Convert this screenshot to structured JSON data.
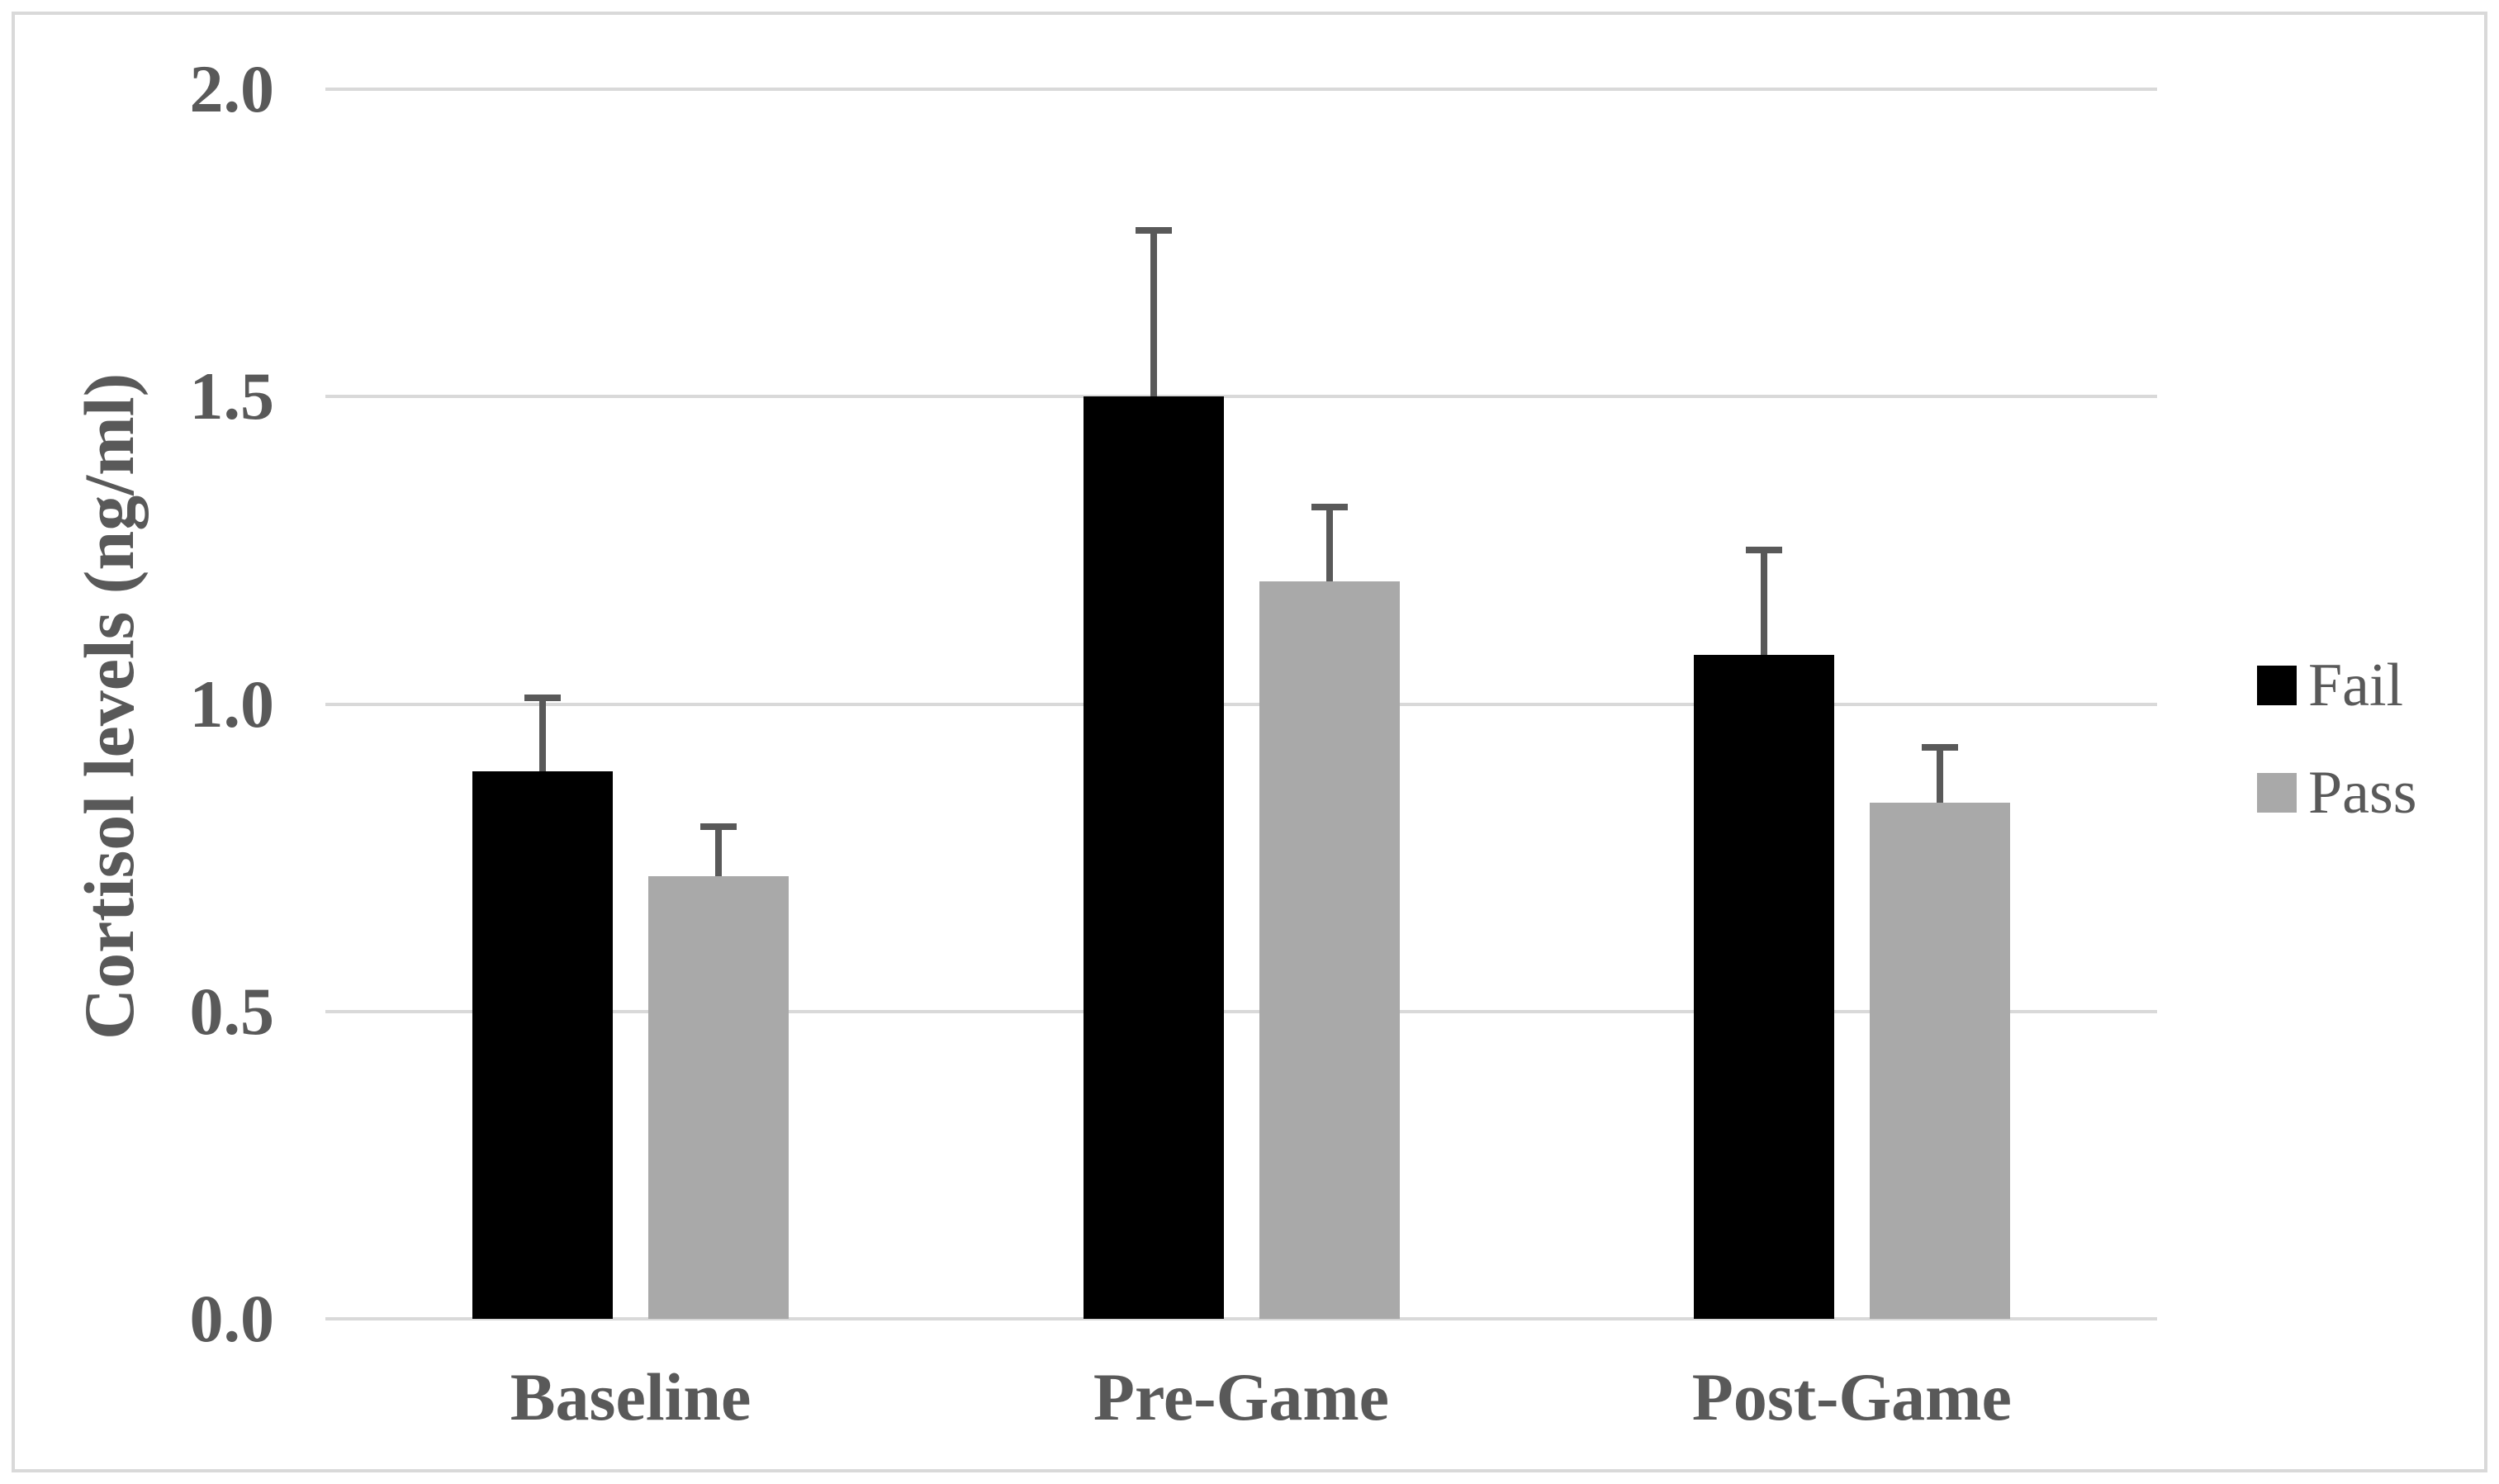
{
  "figure": {
    "background": "#ffffff",
    "border_color": "#d9d9d9"
  },
  "chart_data": {
    "type": "bar",
    "title": "",
    "xlabel": "",
    "ylabel": "Cortisol levels (ng/ml)",
    "categories": [
      "Baseline",
      "Pre-Game",
      "Post-Game"
    ],
    "series": [
      {
        "name": "Fail",
        "color": "#000000",
        "values": [
          0.89,
          1.5,
          1.08
        ],
        "errors_plus": [
          0.12,
          0.27,
          0.17
        ]
      },
      {
        "name": "Pass",
        "color": "#a9a9a9",
        "values": [
          0.72,
          1.2,
          0.84
        ],
        "errors_plus": [
          0.08,
          0.12,
          0.09
        ]
      }
    ],
    "ylim": [
      0,
      2.0
    ],
    "yticks": [
      "0.0",
      "0.5",
      "1.0",
      "1.5",
      "2.0"
    ],
    "grid": true,
    "legend_position": "right",
    "error_bars": "plus_only",
    "text_color": "#595959",
    "gridline_color": "#d9d9d9",
    "error_bar_color": "#595959"
  }
}
